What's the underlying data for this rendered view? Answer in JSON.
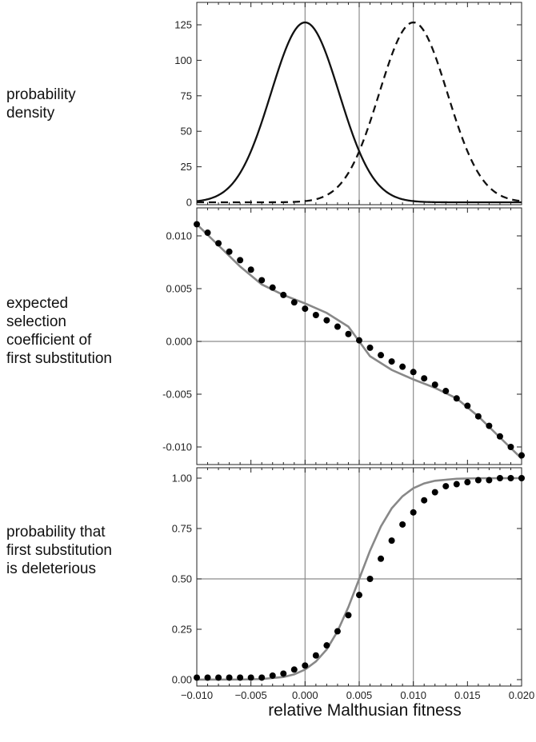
{
  "x_axis_label": "relative Malthusian fitness",
  "x_ticks": [
    "-0.010",
    "-0.005",
    "0.000",
    "0.005",
    "0.010",
    "0.015",
    "0.020"
  ],
  "colors": {
    "curve": "#111111",
    "fit_curve": "#888888",
    "dots": "#000000",
    "grid": "#8c8c8c"
  },
  "chart_data": [
    {
      "type": "line",
      "row_label": "probability\ndensity",
      "xlim": [
        -0.01,
        0.02
      ],
      "ylim": [
        0,
        140
      ],
      "y_ticks": [
        "0",
        "25",
        "50",
        "75",
        "100",
        "125"
      ],
      "y_tick_values": [
        0,
        25,
        50,
        75,
        100,
        125
      ],
      "vlines": [
        0.0,
        0.005,
        0.01
      ],
      "hlines": [],
      "series": [
        {
          "style": "solid",
          "curve": "gaussian",
          "mean": 0.0,
          "sd": 0.00315
        },
        {
          "style": "dashed",
          "curve": "gaussian",
          "mean": 0.01,
          "sd": 0.00315
        }
      ]
    },
    {
      "type": "scatter",
      "row_label": "expected\nselection\ncoefficient of\nfirst substitution",
      "xlim": [
        -0.01,
        0.02
      ],
      "ylim": [
        -0.0115,
        0.0115
      ],
      "y_ticks": [
        "-0.010",
        "-0.005",
        "0.000",
        "0.005",
        "0.010"
      ],
      "y_tick_values": [
        -0.01,
        -0.005,
        0.0,
        0.005,
        0.01
      ],
      "vlines": [
        0.0,
        0.005,
        0.01
      ],
      "hlines": [
        0.0
      ],
      "line_points": [
        [
          -0.01,
          0.0111
        ],
        [
          -0.008,
          0.0091
        ],
        [
          -0.006,
          0.0071
        ],
        [
          -0.004,
          0.0054
        ],
        [
          -0.002,
          0.0044
        ],
        [
          0.0,
          0.0036
        ],
        [
          0.002,
          0.0027
        ],
        [
          0.004,
          0.0014
        ],
        [
          0.005,
          0.0
        ],
        [
          0.006,
          -0.0014
        ],
        [
          0.008,
          -0.0027
        ],
        [
          0.01,
          -0.0036
        ],
        [
          0.012,
          -0.0044
        ],
        [
          0.014,
          -0.0054
        ],
        [
          0.016,
          -0.0071
        ],
        [
          0.018,
          -0.0091
        ],
        [
          0.02,
          -0.0111
        ]
      ],
      "points": [
        [
          -0.01,
          0.0111
        ],
        [
          -0.009,
          0.0103
        ],
        [
          -0.008,
          0.0093
        ],
        [
          -0.007,
          0.0085
        ],
        [
          -0.006,
          0.0077
        ],
        [
          -0.005,
          0.0068
        ],
        [
          -0.004,
          0.0058
        ],
        [
          -0.003,
          0.0051
        ],
        [
          -0.002,
          0.0044
        ],
        [
          -0.001,
          0.0037
        ],
        [
          0.0,
          0.0031
        ],
        [
          0.001,
          0.0025
        ],
        [
          0.002,
          0.002
        ],
        [
          0.003,
          0.0014
        ],
        [
          0.004,
          0.0007
        ],
        [
          0.005,
          0.0001
        ],
        [
          0.006,
          -0.0006
        ],
        [
          0.007,
          -0.0013
        ],
        [
          0.008,
          -0.0019
        ],
        [
          0.009,
          -0.0024
        ],
        [
          0.01,
          -0.0029
        ],
        [
          0.011,
          -0.0035
        ],
        [
          0.012,
          -0.0041
        ],
        [
          0.013,
          -0.0047
        ],
        [
          0.014,
          -0.0054
        ],
        [
          0.015,
          -0.0061
        ],
        [
          0.016,
          -0.0071
        ],
        [
          0.017,
          -0.008
        ],
        [
          0.018,
          -0.009
        ],
        [
          0.019,
          -0.01
        ],
        [
          0.02,
          -0.0108
        ]
      ]
    },
    {
      "type": "scatter",
      "row_label": "probability that\nfirst substitution\nis deleterious",
      "xlim": [
        -0.01,
        0.02
      ],
      "ylim": [
        0,
        1
      ],
      "y_ticks": [
        "0.00",
        "0.25",
        "0.50",
        "0.75",
        "1.00"
      ],
      "y_tick_values": [
        0,
        0.25,
        0.5,
        0.75,
        1.0
      ],
      "vlines": [
        0.0,
        0.005,
        0.01
      ],
      "hlines": [
        0.5
      ],
      "line_points": [
        [
          -0.01,
          0.0
        ],
        [
          -0.006,
          0.0005
        ],
        [
          -0.004,
          0.003
        ],
        [
          -0.002,
          0.013
        ],
        [
          -0.001,
          0.026
        ],
        [
          0.0,
          0.05
        ],
        [
          0.001,
          0.09
        ],
        [
          0.002,
          0.15
        ],
        [
          0.003,
          0.24
        ],
        [
          0.004,
          0.36
        ],
        [
          0.005,
          0.5
        ],
        [
          0.006,
          0.64
        ],
        [
          0.007,
          0.76
        ],
        [
          0.008,
          0.85
        ],
        [
          0.009,
          0.91
        ],
        [
          0.01,
          0.95
        ],
        [
          0.011,
          0.974
        ],
        [
          0.012,
          0.987
        ],
        [
          0.014,
          0.997
        ],
        [
          0.016,
          0.9995
        ],
        [
          0.02,
          1.0
        ]
      ],
      "points": [
        [
          -0.01,
          0.01
        ],
        [
          -0.009,
          0.01
        ],
        [
          -0.008,
          0.01
        ],
        [
          -0.007,
          0.01
        ],
        [
          -0.006,
          0.01
        ],
        [
          -0.005,
          0.01
        ],
        [
          -0.004,
          0.01
        ],
        [
          -0.003,
          0.02
        ],
        [
          -0.002,
          0.03
        ],
        [
          -0.001,
          0.05
        ],
        [
          0.0,
          0.07
        ],
        [
          0.001,
          0.12
        ],
        [
          0.002,
          0.17
        ],
        [
          0.003,
          0.24
        ],
        [
          0.004,
          0.32
        ],
        [
          0.005,
          0.42
        ],
        [
          0.006,
          0.5
        ],
        [
          0.007,
          0.6
        ],
        [
          0.008,
          0.69
        ],
        [
          0.009,
          0.77
        ],
        [
          0.01,
          0.83
        ],
        [
          0.011,
          0.89
        ],
        [
          0.012,
          0.93
        ],
        [
          0.013,
          0.96
        ],
        [
          0.014,
          0.97
        ],
        [
          0.015,
          0.98
        ],
        [
          0.016,
          0.99
        ],
        [
          0.017,
          0.99
        ],
        [
          0.018,
          1.0
        ],
        [
          0.019,
          1.0
        ],
        [
          0.02,
          1.0
        ]
      ]
    }
  ]
}
